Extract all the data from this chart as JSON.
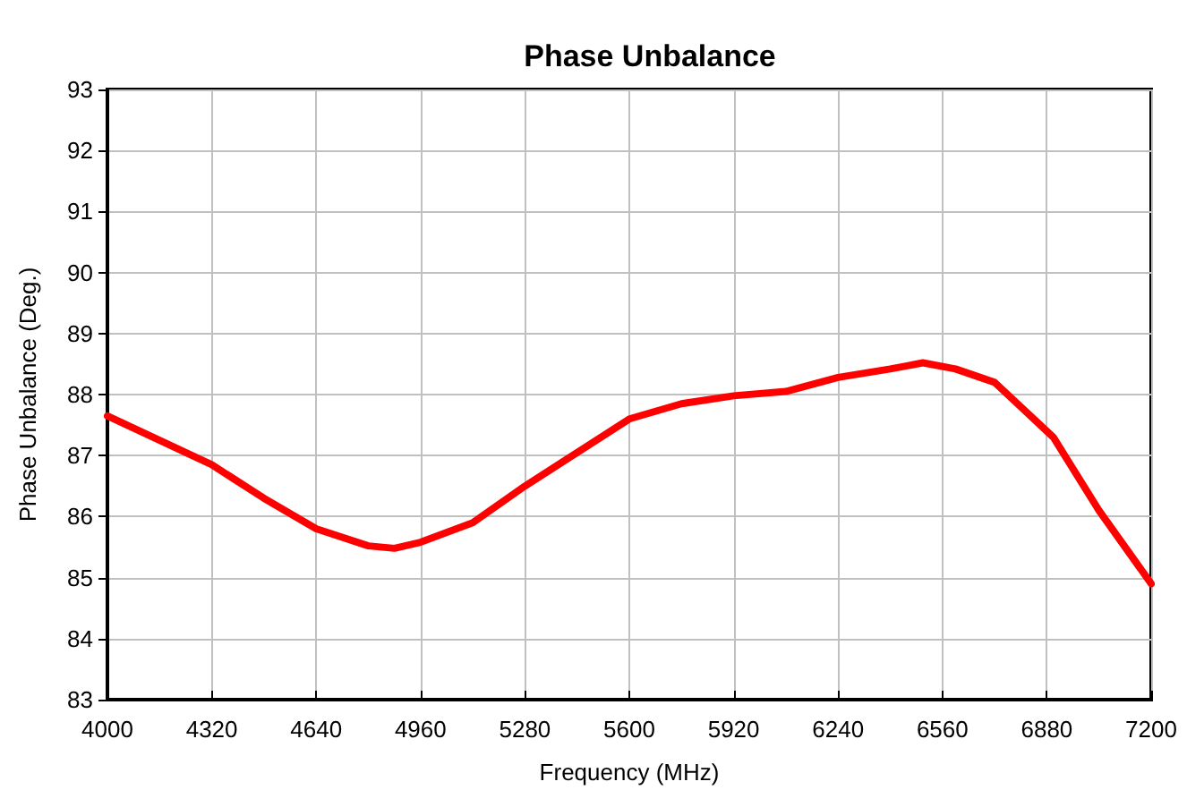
{
  "chart_data": {
    "type": "line",
    "title": "Phase Unbalance",
    "xlabel": "Frequency (MHz)",
    "ylabel": "Phase Unbalance (Deg.)",
    "x": [
      4000,
      4160,
      4320,
      4480,
      4640,
      4800,
      4880,
      4960,
      5120,
      5280,
      5440,
      5600,
      5760,
      5920,
      6080,
      6240,
      6400,
      6500,
      6600,
      6720,
      6800,
      6900,
      7040,
      7200
    ],
    "series": [
      {
        "color": "#ff0000",
        "values": [
          87.65,
          87.25,
          86.85,
          86.3,
          85.8,
          85.52,
          85.48,
          85.58,
          85.9,
          86.5,
          87.05,
          87.6,
          87.85,
          87.98,
          88.05,
          88.28,
          88.42,
          88.52,
          88.42,
          88.2,
          87.8,
          87.3,
          86.1,
          84.9
        ]
      }
    ],
    "xlim": [
      4000,
      7200
    ],
    "xticks": [
      4000,
      4320,
      4640,
      4960,
      5280,
      5600,
      5920,
      6240,
      6560,
      6880,
      7200
    ],
    "ylim": [
      83,
      93
    ],
    "yticks": [
      83,
      84,
      85,
      86,
      87,
      88,
      89,
      90,
      91,
      92,
      93
    ],
    "grid": true,
    "marker": "none",
    "line_style": "solid"
  }
}
